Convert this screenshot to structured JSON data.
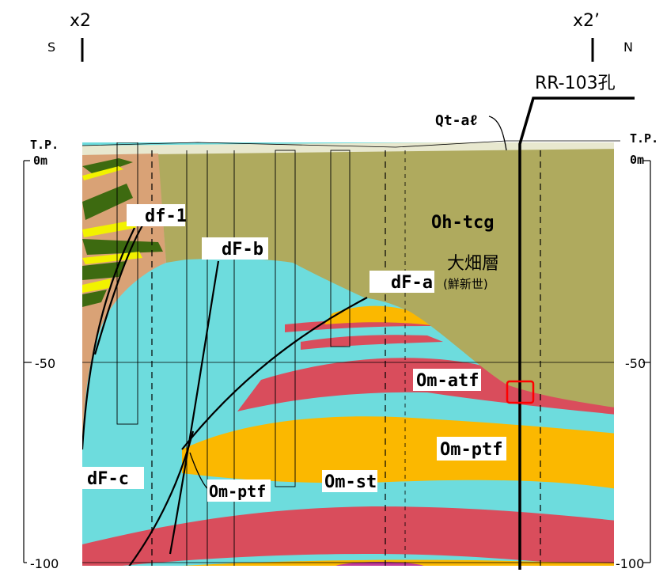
{
  "header": {
    "left_point": "x2",
    "right_point": "x2’",
    "left_direction": "S",
    "right_direction": "N"
  },
  "borehole": {
    "label": "RR-103孔"
  },
  "scale": {
    "tp_label": "T.P.",
    "ticks": [
      "0m",
      "-50",
      "-100"
    ]
  },
  "units": {
    "qt_al": "Qt-aℓ",
    "oh_tcg": "Oh-tcg",
    "formation_name": "大畑層",
    "formation_age": "(鮮新世)",
    "df_1": "df-1",
    "df_b": "dF-b",
    "df_a": "dF-a",
    "df_c": "dF-c",
    "om_atf": "Om-atf",
    "om_ptf_right": "Om-ptf",
    "om_ptf_left": "Om-ptf",
    "om_st": "Om-st"
  },
  "colors": {
    "oh_tcg": "#afaa5e",
    "om_st": "#6ddcdd",
    "om_atf": "#d94d5c",
    "om_ptf": "#fbb800",
    "df_zone": "#d9a276",
    "dark_green": "#3d6a10",
    "yellow": "#f2f200",
    "highlight_box": "#ff0000",
    "magenta": "#c0399a"
  }
}
